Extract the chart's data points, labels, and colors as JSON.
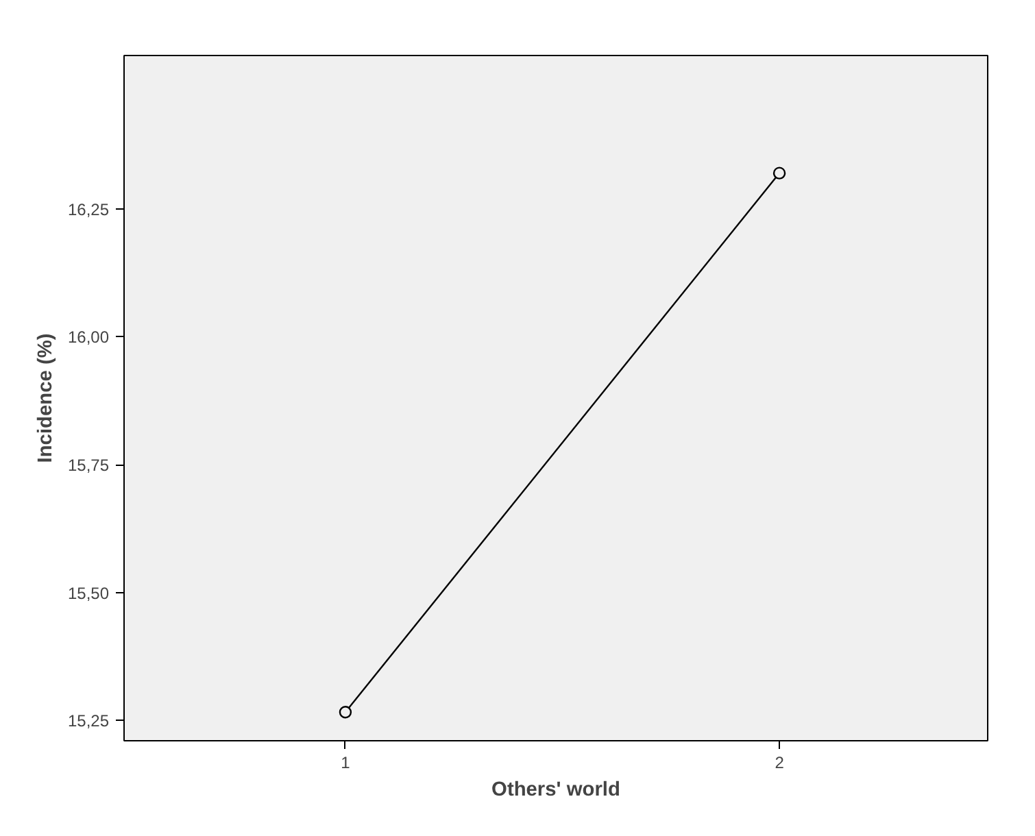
{
  "chart_data": {
    "type": "line",
    "xlabel": "Others' world",
    "ylabel": "Incidence (%)",
    "x": [
      1,
      2
    ],
    "values": [
      15.266,
      16.32
    ],
    "color": "#000000",
    "xlim": [
      0.49,
      2.48
    ],
    "xticks": [
      1,
      2
    ],
    "ylim": [
      15.21,
      16.55
    ],
    "yticks": [
      {
        "value": 15.25,
        "label": "15,25"
      },
      {
        "value": 15.5,
        "label": "15,50"
      },
      {
        "value": 15.75,
        "label": "15,75"
      },
      {
        "value": 16.0,
        "label": "16,00"
      },
      {
        "value": 16.25,
        "label": "16,25"
      }
    ],
    "grid": false,
    "marker": "circle",
    "line_style": "solid"
  }
}
